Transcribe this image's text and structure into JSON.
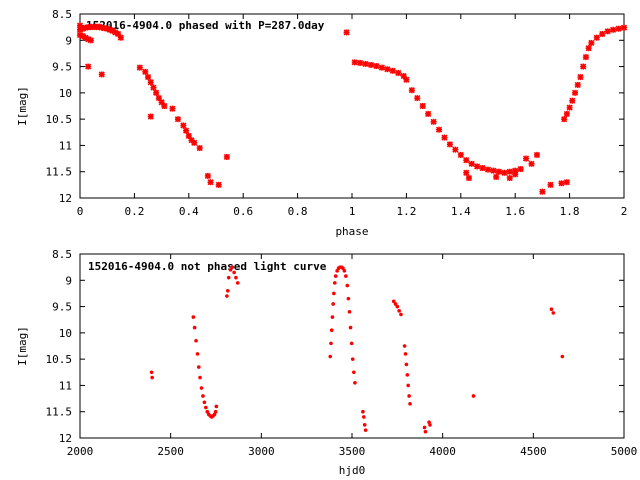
{
  "chart_data": [
    {
      "type": "scatter",
      "title": "152016-4904.0 phased with P=287.0day",
      "xlabel": "phase",
      "ylabel": "I[mag]",
      "xlim": [
        0,
        2
      ],
      "ylim": [
        12,
        8.5
      ],
      "y_inverted": true,
      "xticks": [
        "0",
        "0.2",
        "0.4",
        "0.6",
        "0.8",
        "1",
        "1.2",
        "1.4",
        "1.6",
        "1.8",
        "2"
      ],
      "yticks": [
        "8.5",
        "9",
        "9.5",
        "10",
        "10.5",
        "11",
        "11.5",
        "12"
      ],
      "grid": false,
      "marker_color": "#ff0000",
      "series": [
        {
          "points": [
            [
              0.0,
              8.8
            ],
            [
              0.01,
              8.78
            ],
            [
              0.02,
              8.76
            ],
            [
              0.03,
              8.75
            ],
            [
              0.04,
              8.75
            ],
            [
              0.05,
              8.74
            ],
            [
              0.06,
              8.75
            ],
            [
              0.07,
              8.74
            ],
            [
              0.08,
              8.76
            ],
            [
              0.09,
              8.77
            ],
            [
              0.1,
              8.78
            ],
            [
              0.11,
              8.8
            ],
            [
              0.12,
              8.82
            ],
            [
              0.13,
              8.85
            ],
            [
              0.14,
              8.88
            ],
            [
              0.15,
              8.95
            ],
            [
              0.0,
              8.9
            ],
            [
              0.01,
              8.92
            ],
            [
              0.02,
              8.95
            ],
            [
              0.03,
              8.98
            ],
            [
              0.04,
              9.0
            ],
            [
              0.03,
              9.5
            ],
            [
              0.08,
              9.65
            ],
            [
              0.22,
              9.52
            ],
            [
              0.24,
              9.6
            ],
            [
              0.25,
              9.7
            ],
            [
              0.26,
              9.8
            ],
            [
              0.27,
              9.9
            ],
            [
              0.28,
              10.0
            ],
            [
              0.29,
              10.1
            ],
            [
              0.3,
              10.18
            ],
            [
              0.31,
              10.25
            ],
            [
              0.26,
              10.45
            ],
            [
              0.34,
              10.3
            ],
            [
              0.36,
              10.5
            ],
            [
              0.38,
              10.62
            ],
            [
              0.39,
              10.72
            ],
            [
              0.4,
              10.82
            ],
            [
              0.41,
              10.9
            ],
            [
              0.42,
              10.95
            ],
            [
              0.44,
              11.05
            ],
            [
              0.47,
              11.58
            ],
            [
              0.48,
              11.7
            ],
            [
              0.51,
              11.75
            ],
            [
              0.54,
              11.22
            ],
            [
              1.01,
              9.42
            ],
            [
              1.03,
              9.43
            ],
            [
              1.05,
              9.45
            ],
            [
              1.07,
              9.47
            ],
            [
              1.09,
              9.49
            ],
            [
              1.11,
              9.52
            ],
            [
              1.13,
              9.55
            ],
            [
              1.15,
              9.58
            ],
            [
              1.17,
              9.62
            ],
            [
              1.19,
              9.68
            ],
            [
              1.2,
              9.75
            ],
            [
              1.22,
              9.95
            ],
            [
              1.24,
              10.1
            ],
            [
              1.26,
              10.25
            ],
            [
              1.28,
              10.4
            ],
            [
              1.3,
              10.55
            ],
            [
              1.32,
              10.7
            ],
            [
              1.34,
              10.85
            ],
            [
              1.36,
              10.98
            ],
            [
              1.38,
              11.08
            ],
            [
              1.4,
              11.18
            ],
            [
              1.42,
              11.28
            ],
            [
              1.44,
              11.35
            ],
            [
              1.46,
              11.4
            ],
            [
              1.48,
              11.43
            ],
            [
              1.5,
              11.46
            ],
            [
              1.52,
              11.48
            ],
            [
              1.54,
              11.5
            ],
            [
              1.56,
              11.52
            ],
            [
              1.58,
              11.5
            ],
            [
              1.6,
              11.48
            ],
            [
              1.62,
              11.45
            ],
            [
              1.64,
              11.25
            ],
            [
              1.42,
              11.52
            ],
            [
              1.43,
              11.62
            ],
            [
              1.53,
              11.6
            ],
            [
              1.58,
              11.62
            ],
            [
              1.6,
              11.55
            ],
            [
              1.66,
              11.35
            ],
            [
              1.68,
              11.18
            ],
            [
              1.7,
              11.88
            ],
            [
              1.73,
              11.75
            ],
            [
              1.77,
              11.72
            ],
            [
              1.79,
              11.7
            ],
            [
              1.78,
              10.5
            ],
            [
              1.79,
              10.4
            ],
            [
              1.8,
              10.28
            ],
            [
              1.81,
              10.15
            ],
            [
              1.82,
              10.0
            ],
            [
              1.83,
              9.85
            ],
            [
              1.84,
              9.7
            ],
            [
              1.85,
              9.5
            ],
            [
              1.86,
              9.32
            ],
            [
              1.87,
              9.15
            ],
            [
              1.88,
              9.05
            ],
            [
              1.9,
              8.95
            ],
            [
              1.92,
              8.88
            ],
            [
              1.94,
              8.83
            ],
            [
              1.96,
              8.8
            ],
            [
              1.98,
              8.78
            ],
            [
              2.0,
              8.76
            ],
            [
              0.0,
              8.72
            ],
            [
              0.98,
              8.85
            ]
          ]
        }
      ]
    },
    {
      "type": "scatter",
      "title": "152016-4904.0 not phased light curve",
      "xlabel": "hjd0",
      "ylabel": "I[mag]",
      "xlim": [
        2000,
        5000
      ],
      "ylim": [
        12,
        8.5
      ],
      "y_inverted": true,
      "xticks": [
        "2000",
        "2500",
        "3000",
        "3500",
        "4000",
        "4500",
        "5000"
      ],
      "yticks": [
        "8.5",
        "9",
        "9.5",
        "10",
        "10.5",
        "11",
        "11.5",
        "12"
      ],
      "grid": false,
      "marker_color": "#ff0000",
      "series": [
        {
          "points": [
            [
              2395,
              10.75
            ],
            [
              2398,
              10.85
            ],
            [
              2625,
              9.7
            ],
            [
              2632,
              9.9
            ],
            [
              2640,
              10.15
            ],
            [
              2648,
              10.4
            ],
            [
              2655,
              10.65
            ],
            [
              2662,
              10.85
            ],
            [
              2670,
              11.05
            ],
            [
              2678,
              11.2
            ],
            [
              2686,
              11.32
            ],
            [
              2694,
              11.42
            ],
            [
              2702,
              11.5
            ],
            [
              2710,
              11.55
            ],
            [
              2718,
              11.58
            ],
            [
              2726,
              11.6
            ],
            [
              2734,
              11.58
            ],
            [
              2742,
              11.55
            ],
            [
              2748,
              11.5
            ],
            [
              2752,
              11.4
            ],
            [
              2810,
              9.3
            ],
            [
              2815,
              9.2
            ],
            [
              2820,
              8.95
            ],
            [
              2830,
              8.8
            ],
            [
              2840,
              8.75
            ],
            [
              2850,
              8.85
            ],
            [
              2860,
              8.95
            ],
            [
              2870,
              9.05
            ],
            [
              3380,
              10.45
            ],
            [
              3384,
              10.2
            ],
            [
              3388,
              9.95
            ],
            [
              3392,
              9.7
            ],
            [
              3396,
              9.45
            ],
            [
              3400,
              9.25
            ],
            [
              3405,
              9.05
            ],
            [
              3410,
              8.92
            ],
            [
              3418,
              8.82
            ],
            [
              3426,
              8.77
            ],
            [
              3434,
              8.75
            ],
            [
              3442,
              8.75
            ],
            [
              3450,
              8.77
            ],
            [
              3458,
              8.82
            ],
            [
              3466,
              8.92
            ],
            [
              3474,
              9.1
            ],
            [
              3480,
              9.35
            ],
            [
              3486,
              9.6
            ],
            [
              3492,
              9.9
            ],
            [
              3498,
              10.2
            ],
            [
              3504,
              10.5
            ],
            [
              3510,
              10.75
            ],
            [
              3516,
              10.95
            ],
            [
              3560,
              11.5
            ],
            [
              3565,
              11.6
            ],
            [
              3570,
              11.75
            ],
            [
              3575,
              11.85
            ],
            [
              3730,
              9.4
            ],
            [
              3740,
              9.45
            ],
            [
              3750,
              9.5
            ],
            [
              3760,
              9.58
            ],
            [
              3770,
              9.65
            ],
            [
              3790,
              10.25
            ],
            [
              3795,
              10.4
            ],
            [
              3800,
              10.6
            ],
            [
              3805,
              10.8
            ],
            [
              3810,
              11.0
            ],
            [
              3815,
              11.2
            ],
            [
              3820,
              11.35
            ],
            [
              3900,
              11.8
            ],
            [
              3905,
              11.88
            ],
            [
              3925,
              11.7
            ],
            [
              3930,
              11.75
            ],
            [
              4170,
              11.2
            ],
            [
              4600,
              9.55
            ],
            [
              4610,
              9.62
            ],
            [
              4660,
              10.45
            ]
          ]
        }
      ]
    }
  ]
}
